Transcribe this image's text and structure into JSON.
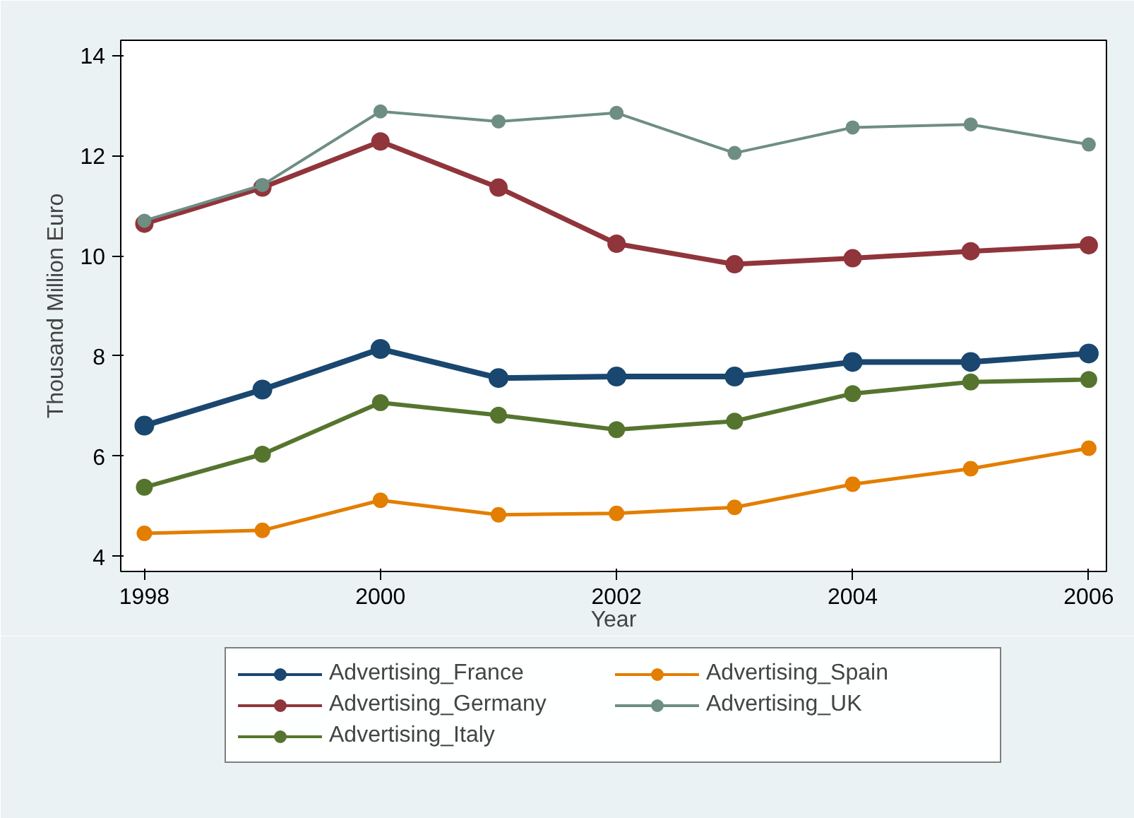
{
  "chart_data": {
    "type": "line",
    "xlabel": "Year",
    "ylabel": "Thousand Million Euro",
    "x": [
      1998,
      1999,
      2000,
      2001,
      2002,
      2003,
      2004,
      2005,
      2006
    ],
    "xlim": [
      1997.8,
      2006.15
    ],
    "ylim": [
      3.7,
      14.3
    ],
    "xticks": [
      1998,
      2000,
      2002,
      2004,
      2006
    ],
    "yticks": [
      4,
      6,
      8,
      10,
      12,
      14
    ],
    "grid": false,
    "legend": "bottom",
    "marker": "circle",
    "line_style": "solid",
    "series": [
      {
        "name": "Advertising_France",
        "color": "#1a476f",
        "values": [
          6.61,
          7.33,
          8.14,
          7.56,
          7.59,
          7.59,
          7.88,
          7.88,
          8.05
        ]
      },
      {
        "name": "Advertising_Germany",
        "color": "#90353b",
        "values": [
          10.64,
          11.36,
          12.28,
          11.36,
          10.24,
          9.83,
          9.95,
          10.09,
          10.21
        ]
      },
      {
        "name": "Advertising_Italy",
        "color": "#55752f",
        "values": [
          5.38,
          6.04,
          7.07,
          6.82,
          6.53,
          6.7,
          7.25,
          7.48,
          7.53
        ]
      },
      {
        "name": "Advertising_Spain",
        "color": "#e37e00",
        "values": [
          4.46,
          4.52,
          5.12,
          4.83,
          4.86,
          4.98,
          5.44,
          5.75,
          6.16
        ]
      },
      {
        "name": "Advertising_UK",
        "color": "#6e8e84",
        "values": [
          10.7,
          11.41,
          12.88,
          12.68,
          12.85,
          12.05,
          12.56,
          12.62,
          12.22
        ]
      }
    ]
  }
}
